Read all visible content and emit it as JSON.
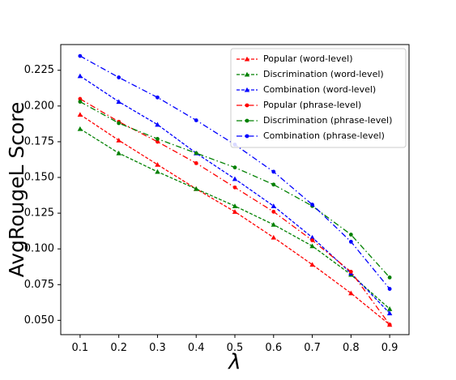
{
  "chart_data": {
    "type": "line",
    "xlabel": "λ",
    "ylabel": "AvgRougeL Score",
    "x": [
      0.1,
      0.2,
      0.3,
      0.4,
      0.5,
      0.6,
      0.7,
      0.8,
      0.9
    ],
    "x_ticks": [
      "0.1",
      "0.2",
      "0.3",
      "0.4",
      "0.5",
      "0.6",
      "0.7",
      "0.8",
      "0.9"
    ],
    "y_ticks": [
      "0.050",
      "0.075",
      "0.100",
      "0.125",
      "0.150",
      "0.175",
      "0.200",
      "0.225"
    ],
    "xlim": [
      0.05,
      0.95
    ],
    "ylim": [
      0.04,
      0.243
    ],
    "grid": false,
    "legend_position": "top-right",
    "series": [
      {
        "name": "Popular (word-level)",
        "color": "#ff0000",
        "marker": "triangle",
        "dash": "dashed",
        "values": [
          0.194,
          0.176,
          0.159,
          0.142,
          0.126,
          0.108,
          0.089,
          0.069,
          0.047
        ]
      },
      {
        "name": "Discrimination (word-level)",
        "color": "#008000",
        "marker": "triangle",
        "dash": "dashed",
        "values": [
          0.184,
          0.167,
          0.154,
          0.142,
          0.13,
          0.117,
          0.102,
          0.082,
          0.058
        ]
      },
      {
        "name": "Combination (word-level)",
        "color": "#0000ff",
        "marker": "triangle",
        "dash": "dashed",
        "values": [
          0.221,
          0.203,
          0.187,
          0.167,
          0.149,
          0.13,
          0.108,
          0.083,
          0.055
        ]
      },
      {
        "name": "Popular (phrase-level)",
        "color": "#ff0000",
        "marker": "dot",
        "dash": "dashdot",
        "values": [
          0.205,
          0.189,
          0.175,
          0.16,
          0.143,
          0.126,
          0.106,
          0.084,
          0.047
        ]
      },
      {
        "name": "Discrimination (phrase-level)",
        "color": "#008000",
        "marker": "dot",
        "dash": "dashdot",
        "values": [
          0.203,
          0.188,
          0.177,
          0.167,
          0.157,
          0.145,
          0.13,
          0.11,
          0.08
        ]
      },
      {
        "name": "Combination (phrase-level)",
        "color": "#0000ff",
        "marker": "dot",
        "dash": "dashdot",
        "values": [
          0.235,
          0.22,
          0.206,
          0.19,
          0.173,
          0.154,
          0.131,
          0.105,
          0.072
        ]
      }
    ]
  }
}
